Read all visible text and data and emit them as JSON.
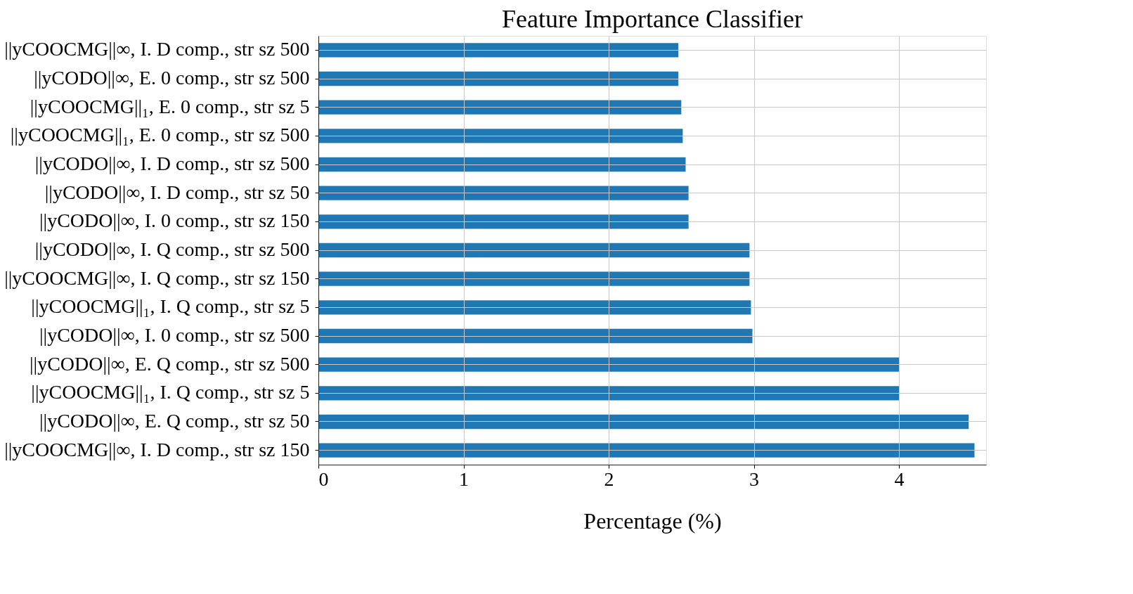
{
  "chart_data": {
    "type": "bar",
    "orientation": "horizontal",
    "title": "Feature Importance Classifier",
    "xlabel": "Percentage (%)",
    "categories": [
      "||yCOOCMG||∞, I. D comp., str sz 500",
      "||yCODO||∞, E. 0 comp., str sz 500",
      "||yCOOCMG||₁, E. 0 comp., str sz 5",
      "||yCOOCMG||₁, E. 0 comp., str sz 500",
      "||yCODO||∞, I. D comp., str sz 500",
      "||yCODO||∞, I. D comp., str sz 50",
      "||yCODO||∞, I. 0 comp., str sz 150",
      "||yCODO||∞, I. Q comp., str sz 500",
      "||yCOOCMG||∞, I. Q comp., str sz 150",
      "||yCOOCMG||₁, I. Q comp., str sz 5",
      "||yCODO||∞, I. 0 comp., str sz 500",
      "||yCODO||∞, E. Q comp., str sz 500",
      "||yCOOCMG||₁, I. Q comp., str sz 5",
      "||yCODO||∞, E. Q comp., str sz 50",
      "||yCOOCMG||∞, I. D comp., str sz 150"
    ],
    "values": [
      2.48,
      2.48,
      2.5,
      2.51,
      2.53,
      2.55,
      2.55,
      2.97,
      2.97,
      2.98,
      2.99,
      4.0,
      4.0,
      4.48,
      4.52
    ],
    "color": "#1f77b4",
    "xlim": [
      0,
      4.6
    ],
    "xticks": [
      0,
      1,
      2,
      3,
      4
    ],
    "grid": true
  }
}
